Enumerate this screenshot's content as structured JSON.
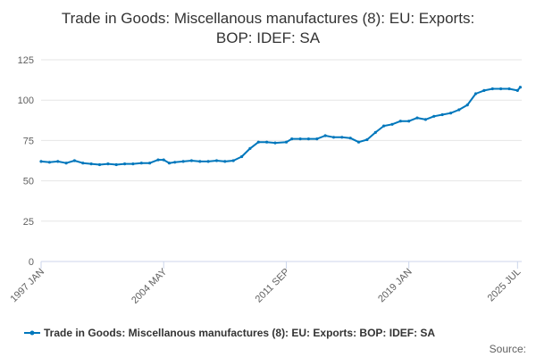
{
  "chart_data": {
    "type": "line",
    "title_lines": [
      "Trade in Goods: Miscellanous manufactures (8): EU: Exports:",
      "BOP: IDEF: SA"
    ],
    "x_tick_labels": [
      "1997 JAN",
      "2004 MAY",
      "2011 SEP",
      "2019 JAN",
      "2025 JUL"
    ],
    "y_ticks": [
      0,
      25,
      50,
      75,
      100,
      125
    ],
    "ylim": [
      0,
      125
    ],
    "grid": "horizontal",
    "legend_position": "bottom",
    "source_label": "Source:",
    "color": "#0077bc",
    "series": [
      {
        "name": "Trade in Goods: Miscellanous manufactures (8): EU: Exports: BOP: IDEF: SA",
        "points": [
          [
            "1997-01",
            62
          ],
          [
            "1997-07",
            61.5
          ],
          [
            "1998-01",
            62
          ],
          [
            "1998-07",
            61
          ],
          [
            "1999-01",
            62.5
          ],
          [
            "1999-07",
            61
          ],
          [
            "2000-01",
            60.5
          ],
          [
            "2000-07",
            60
          ],
          [
            "2001-01",
            60.5
          ],
          [
            "2001-07",
            60
          ],
          [
            "2002-01",
            60.5
          ],
          [
            "2002-07",
            60.5
          ],
          [
            "2003-01",
            61
          ],
          [
            "2003-07",
            61
          ],
          [
            "2004-01",
            63
          ],
          [
            "2004-05",
            63
          ],
          [
            "2004-09",
            61
          ],
          [
            "2005-01",
            61.5
          ],
          [
            "2005-07",
            62
          ],
          [
            "2006-01",
            62.5
          ],
          [
            "2006-07",
            62
          ],
          [
            "2007-01",
            62
          ],
          [
            "2007-07",
            62.5
          ],
          [
            "2008-01",
            62
          ],
          [
            "2008-07",
            62.5
          ],
          [
            "2009-01",
            65
          ],
          [
            "2009-07",
            70
          ],
          [
            "2010-01",
            74
          ],
          [
            "2010-07",
            74
          ],
          [
            "2011-01",
            73.5
          ],
          [
            "2011-09",
            74
          ],
          [
            "2012-01",
            76
          ],
          [
            "2012-07",
            76
          ],
          [
            "2013-01",
            76
          ],
          [
            "2013-07",
            76
          ],
          [
            "2014-01",
            78
          ],
          [
            "2014-07",
            77
          ],
          [
            "2015-01",
            77
          ],
          [
            "2015-07",
            76.5
          ],
          [
            "2016-01",
            74
          ],
          [
            "2016-07",
            75.5
          ],
          [
            "2017-01",
            80
          ],
          [
            "2017-07",
            84
          ],
          [
            "2018-01",
            85
          ],
          [
            "2018-07",
            87
          ],
          [
            "2019-01",
            87
          ],
          [
            "2019-07",
            89
          ],
          [
            "2020-01",
            88
          ],
          [
            "2020-07",
            90
          ],
          [
            "2021-01",
            91
          ],
          [
            "2021-07",
            92
          ],
          [
            "2022-01",
            94
          ],
          [
            "2022-07",
            97
          ],
          [
            "2023-01",
            104
          ],
          [
            "2023-07",
            106
          ],
          [
            "2024-01",
            107
          ],
          [
            "2024-07",
            107
          ],
          [
            "2025-01",
            107
          ],
          [
            "2025-07",
            106
          ],
          [
            "2025-09",
            108
          ]
        ]
      }
    ]
  }
}
